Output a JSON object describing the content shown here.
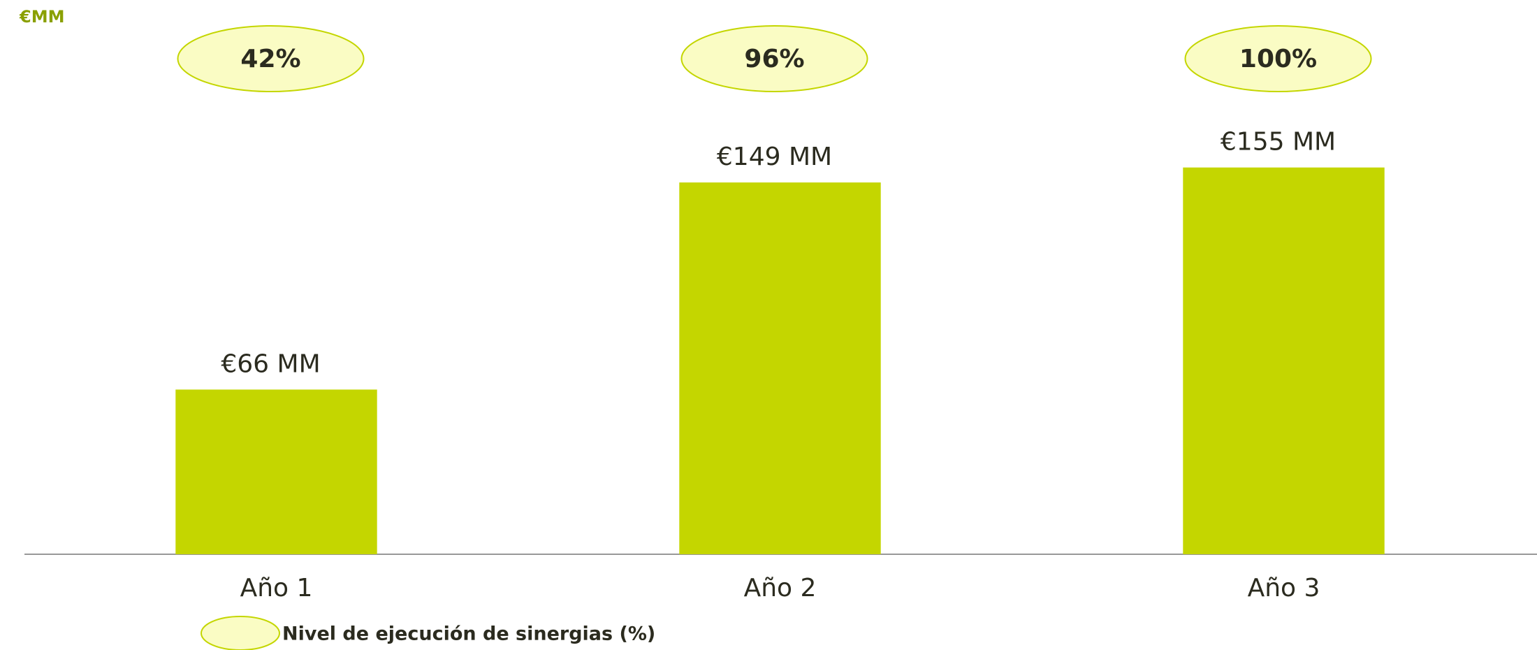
{
  "chart_data": {
    "type": "bar",
    "y_label": "€MM",
    "categories": [
      "Año 1",
      "Año 2",
      "Año 3"
    ],
    "values": [
      66,
      149,
      155
    ],
    "value_labels": [
      "€66 MM",
      "€149 MM",
      "€155 MM"
    ],
    "color": "#c4d600",
    "ylim": [
      0,
      200
    ],
    "grid": false,
    "execution": {
      "name": "Nivel de ejecución de sinergias (%)",
      "values": [
        42,
        96,
        100
      ],
      "value_labels": [
        "42%",
        "96%",
        "100%"
      ],
      "color": "#fafcc4"
    }
  }
}
